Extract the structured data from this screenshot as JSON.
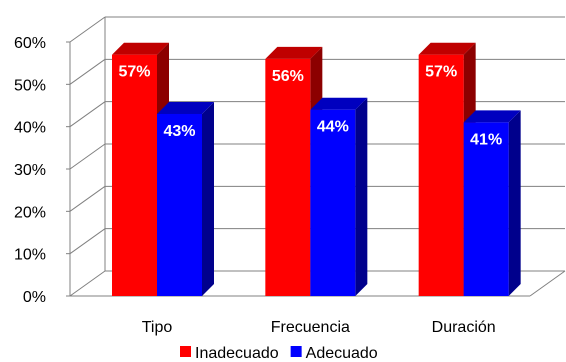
{
  "chart_data": {
    "type": "bar",
    "categories": [
      "Tipo",
      "Frecuencia",
      "Duración"
    ],
    "series": [
      {
        "name": "Inadecuado",
        "values": [
          57,
          56,
          57
        ],
        "labels": [
          "57%",
          "56%",
          "57%"
        ],
        "color": "#ff0000"
      },
      {
        "name": "Adecuado",
        "values": [
          43,
          44,
          41
        ],
        "labels": [
          "43%",
          "44%",
          "41%"
        ],
        "color": "#0000ff"
      }
    ],
    "ylim": [
      0,
      60
    ],
    "yticks": [
      "0%",
      "10%",
      "20%",
      "30%",
      "40%",
      "50%",
      "60%"
    ],
    "grid": true,
    "legend": "bottom"
  }
}
